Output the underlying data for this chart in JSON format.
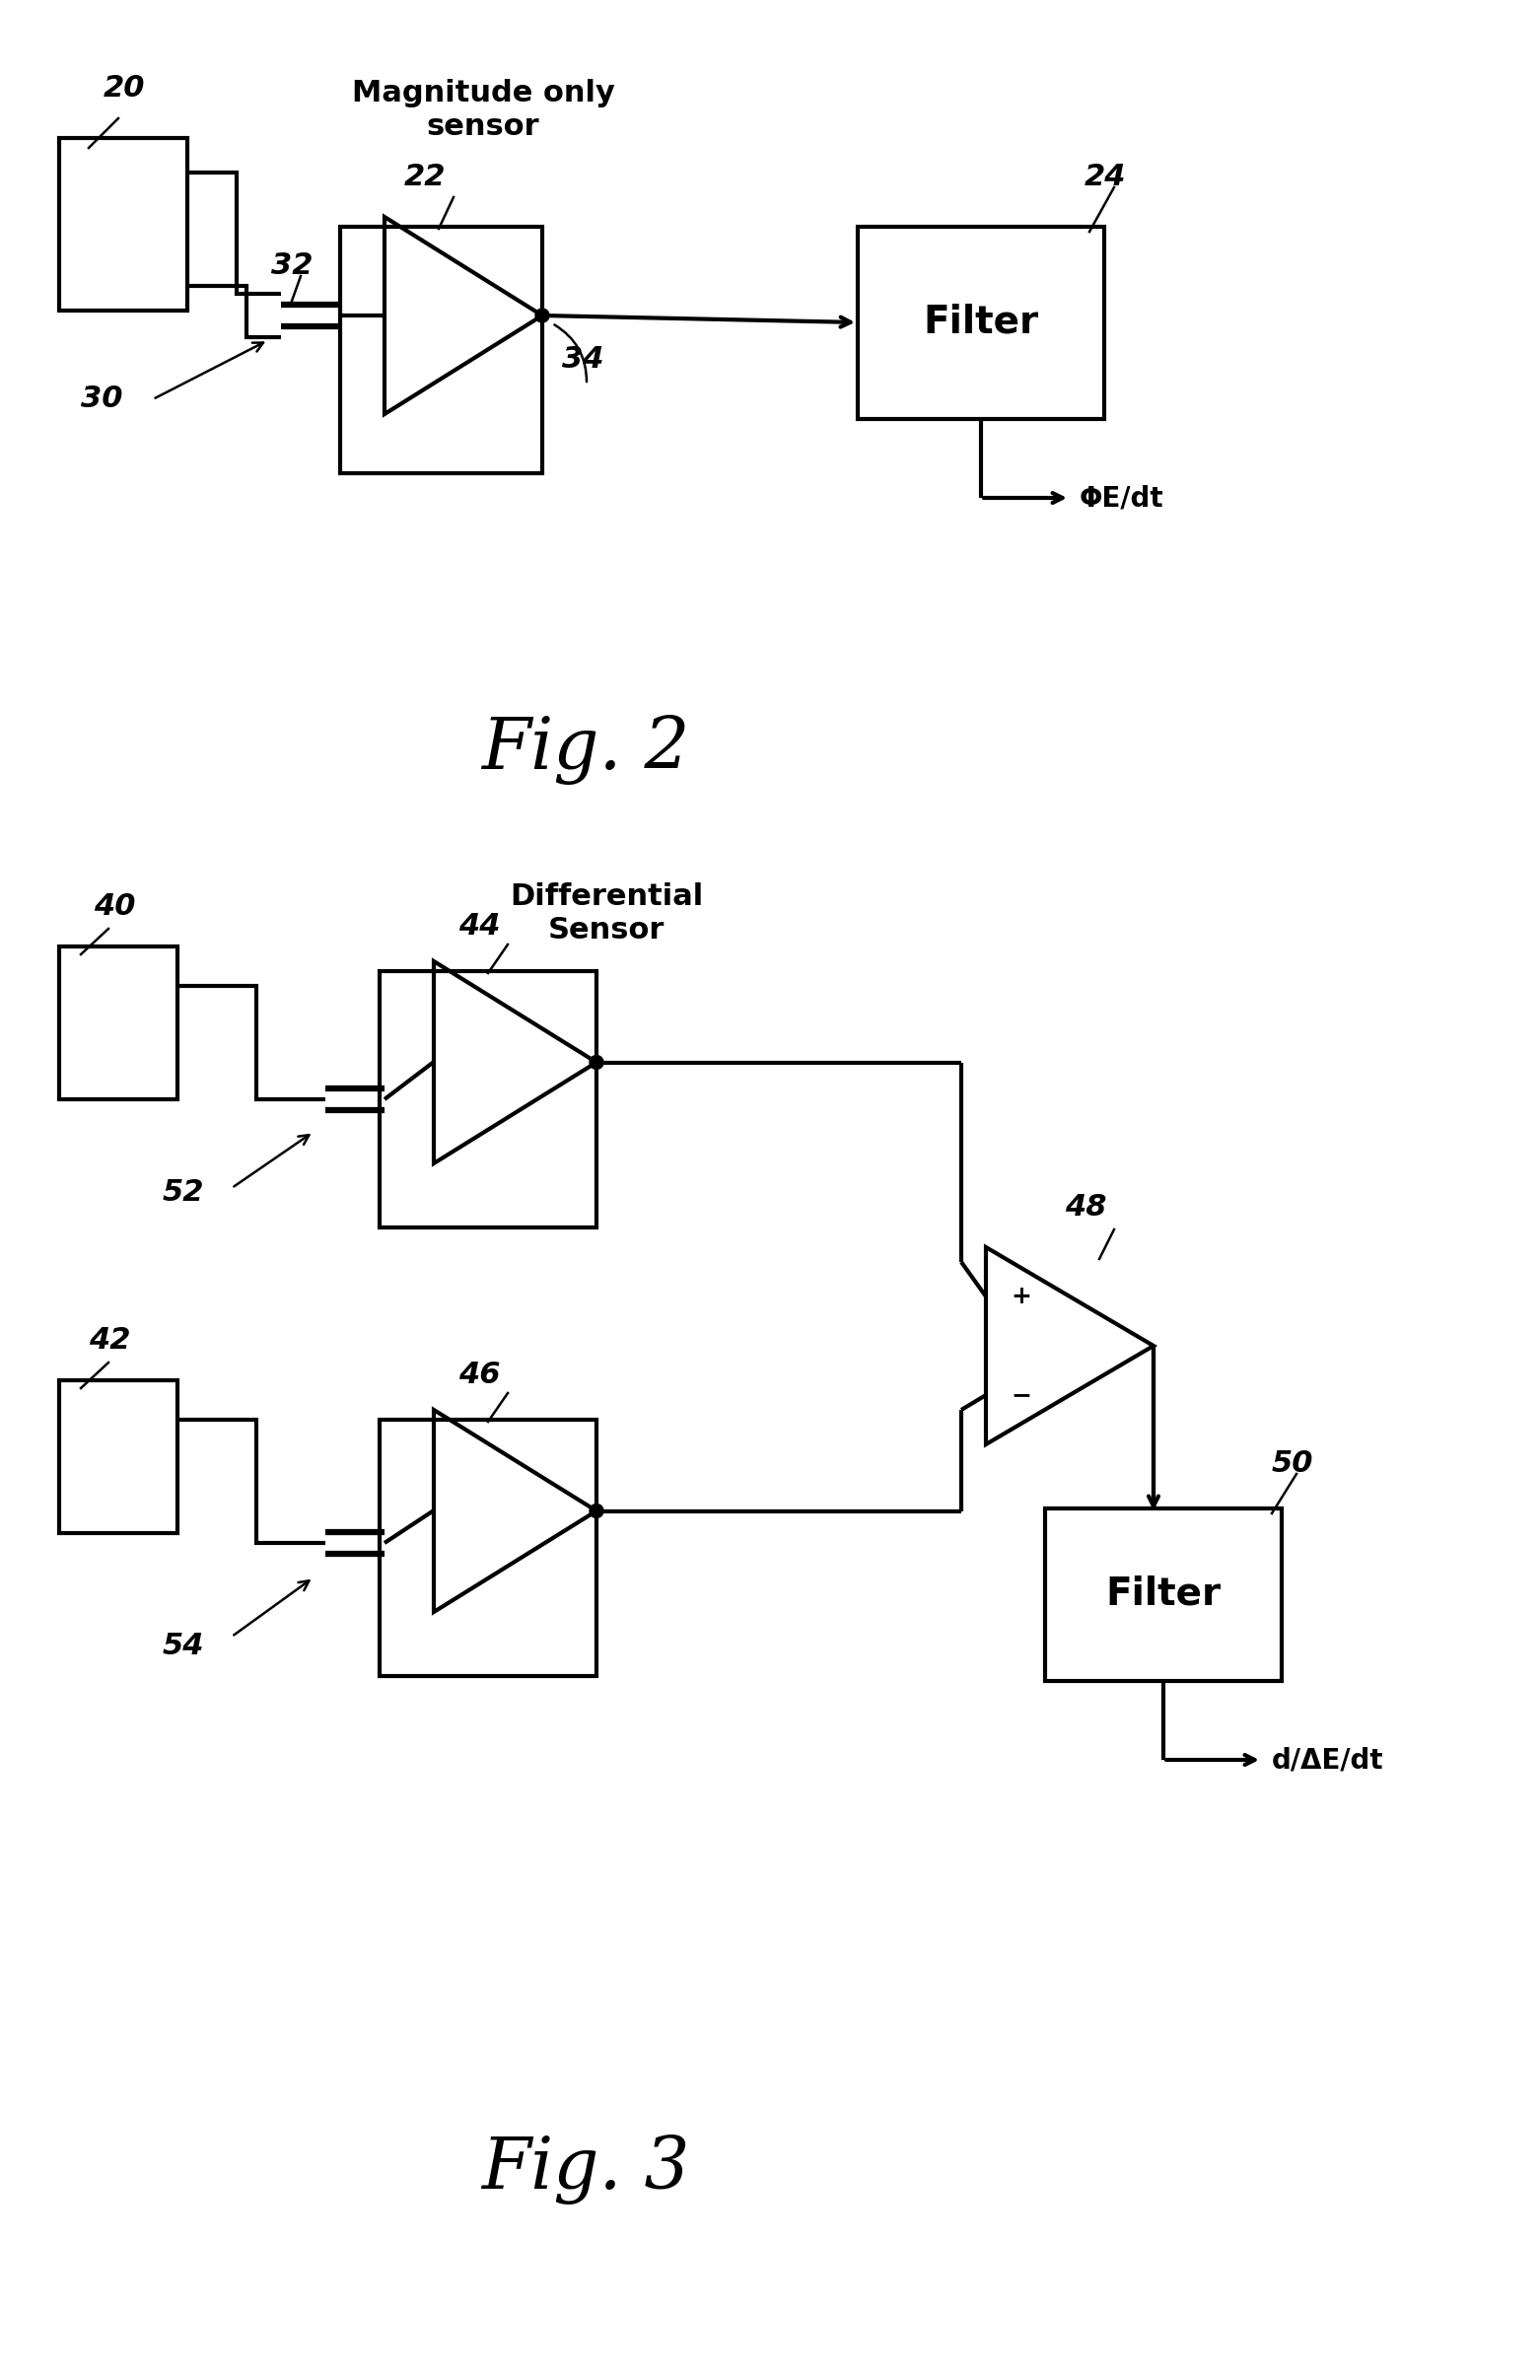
{
  "bg_color": "#ffffff",
  "line_color": "#000000",
  "fig2": {
    "label_magnitude": "Magnitude only\nsensor",
    "label_20": "20",
    "label_22": "22",
    "label_24": "24",
    "label_30": "30",
    "label_32": "32",
    "label_34": "34",
    "label_filter": "Filter",
    "label_output": "ΦE/dt"
  },
  "fig3": {
    "label_diff": "Differential\nSensor",
    "label_40": "40",
    "label_42": "42",
    "label_44": "44",
    "label_46": "46",
    "label_48": "48",
    "label_50": "50",
    "label_52": "52",
    "label_54": "54",
    "label_filter": "Filter",
    "label_output": "d/ΔE/dt"
  }
}
